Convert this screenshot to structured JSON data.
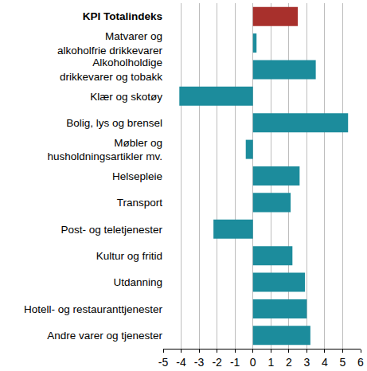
{
  "chart_data": {
    "type": "bar",
    "orientation": "horizontal",
    "categories": [
      "KPI Totalindeks",
      "Matvarer og\nalkoholfrie drikkevarer",
      "Alkoholholdige\ndrikkevarer og tobakk",
      "Klær og skotøy",
      "Bolig, lys og brensel",
      "Møbler og\nhusholdningsartikler mv.",
      "Helsepleie",
      "Transport",
      "Post- og teletjenester",
      "Kultur og fritid",
      "Utdanning",
      "Hotell- og restauranttjenester",
      "Andre varer og tjenester"
    ],
    "values": [
      2.5,
      0.2,
      3.5,
      -4.1,
      5.3,
      -0.4,
      2.6,
      2.1,
      -2.2,
      2.2,
      2.9,
      3.0,
      3.2
    ],
    "colors": [
      "#a8302c",
      "#1c8c9c",
      "#1c8c9c",
      "#1c8c9c",
      "#1c8c9c",
      "#1c8c9c",
      "#1c8c9c",
      "#1c8c9c",
      "#1c8c9c",
      "#1c8c9c",
      "#1c8c9c",
      "#1c8c9c",
      "#1c8c9c"
    ],
    "xlim": [
      -5,
      6
    ],
    "xticks": [
      -5,
      -4,
      -3,
      -2,
      -1,
      0,
      1,
      2,
      3,
      4,
      5,
      6
    ],
    "grid": true
  }
}
